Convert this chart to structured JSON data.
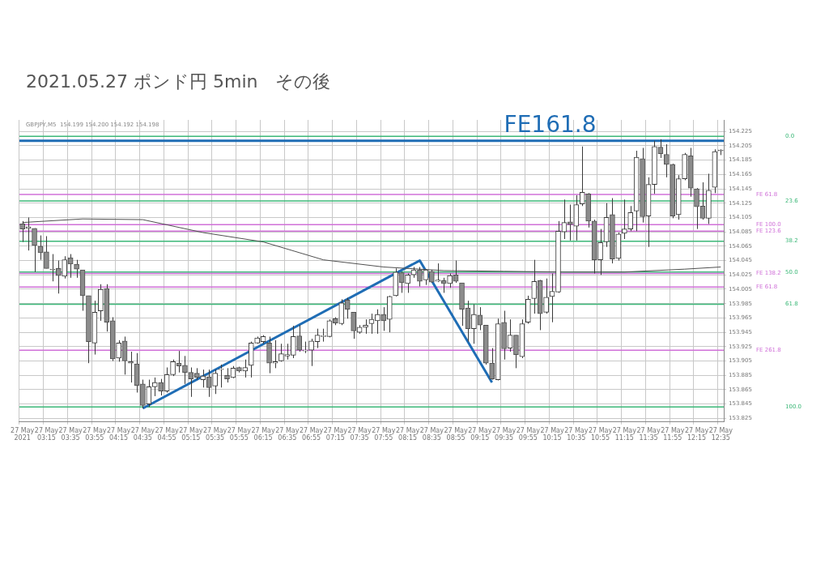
{
  "chart_data": {
    "type": "candlestick",
    "title": "2021.05.27  ポンド円 5min　その後",
    "categories": [
      "27 May 2021",
      null,
      null,
      null,
      "27 May 03:15",
      null,
      null,
      null,
      "27 May 03:35",
      null,
      null,
      null,
      "27 May 03:55",
      null,
      null,
      null,
      "27 May 04:15",
      null,
      null,
      null,
      "27 May 04:35",
      null,
      null,
      null,
      "27 May 04:55",
      null,
      null,
      null,
      "27 May 05:15",
      null,
      null,
      null,
      "27 May 05:35",
      null,
      null,
      null,
      "27 May 05:55",
      null,
      null,
      null,
      "27 May 06:15",
      null,
      null,
      null,
      "27 May 06:35",
      null,
      null,
      null,
      "27 May 06:55",
      null,
      null,
      null,
      "27 May 07:15",
      null,
      null,
      null,
      "27 May 07:35",
      null,
      null,
      null,
      "27 May 07:55",
      null,
      null,
      null,
      "27 May 08:15",
      null,
      null,
      null,
      "27 May 08:35",
      null,
      null,
      null,
      "27 May 08:55",
      null,
      null,
      null,
      "27 May 09:15",
      null,
      null,
      null,
      "27 May 09:35",
      null,
      null,
      null,
      "27 May 09:55",
      null,
      null,
      null,
      "27 May 10:15",
      null,
      null,
      null,
      "27 May 10:35",
      null,
      null,
      null,
      "27 May 10:55",
      null,
      null,
      null,
      "27 May 11:15",
      null,
      null,
      null,
      "27 May 11:35",
      null,
      null,
      null,
      "27 May 11:55",
      null,
      null,
      null,
      "27 May 12:15",
      null,
      null,
      null,
      "27 May 12:35"
    ],
    "ohlc": [
      [
        154.096,
        154.1,
        154.071,
        154.089
      ],
      [
        154.09,
        154.105,
        154.059,
        154.092
      ],
      [
        154.09,
        154.09,
        154.029,
        154.066
      ],
      [
        154.065,
        154.08,
        154.046,
        154.056
      ],
      [
        154.057,
        154.079,
        154.034,
        154.034
      ],
      [
        154.033,
        154.054,
        154.016,
        154.032
      ],
      [
        154.034,
        154.045,
        153.999,
        154.024
      ],
      [
        154.023,
        154.051,
        154.02,
        154.046
      ],
      [
        154.049,
        154.054,
        154.021,
        154.04
      ],
      [
        154.04,
        154.046,
        154.021,
        154.033
      ],
      [
        154.032,
        154.032,
        153.975,
        153.996
      ],
      [
        153.996,
        153.996,
        153.902,
        153.932
      ],
      [
        153.93,
        153.989,
        153.914,
        153.973
      ],
      [
        153.975,
        154.012,
        153.961,
        154.005
      ],
      [
        154.006,
        154.012,
        153.946,
        153.959
      ],
      [
        153.961,
        153.966,
        153.905,
        153.908
      ],
      [
        153.909,
        153.934,
        153.904,
        153.93
      ],
      [
        153.933,
        153.939,
        153.886,
        153.905
      ],
      [
        153.904,
        153.918,
        153.875,
        153.902
      ],
      [
        153.901,
        153.916,
        153.861,
        153.871
      ],
      [
        153.873,
        153.879,
        153.839,
        153.843
      ],
      [
        153.845,
        153.879,
        153.841,
        153.869
      ],
      [
        153.869,
        153.882,
        153.856,
        153.875
      ],
      [
        153.875,
        153.88,
        153.857,
        153.863
      ],
      [
        153.863,
        153.896,
        153.861,
        153.886
      ],
      [
        153.886,
        153.907,
        153.884,
        153.904
      ],
      [
        153.902,
        153.919,
        153.889,
        153.898
      ],
      [
        153.899,
        153.912,
        153.873,
        153.889
      ],
      [
        153.889,
        153.896,
        153.855,
        153.88
      ],
      [
        153.888,
        153.895,
        153.879,
        153.882
      ],
      [
        153.879,
        153.893,
        153.868,
        153.884
      ],
      [
        153.883,
        153.893,
        153.855,
        153.868
      ],
      [
        153.87,
        153.893,
        153.859,
        153.888
      ],
      [
        153.893,
        153.9,
        153.868,
        153.893
      ],
      [
        153.885,
        153.895,
        153.875,
        153.88
      ],
      [
        153.882,
        153.898,
        153.881,
        153.895
      ],
      [
        153.896,
        153.897,
        153.889,
        153.891
      ],
      [
        153.891,
        153.907,
        153.882,
        153.896
      ],
      [
        153.899,
        153.932,
        153.882,
        153.93
      ],
      [
        153.93,
        153.939,
        153.929,
        153.937
      ],
      [
        153.932,
        153.941,
        153.929,
        153.939
      ],
      [
        153.93,
        153.939,
        153.888,
        153.902
      ],
      [
        153.902,
        153.934,
        153.895,
        153.904
      ],
      [
        153.905,
        153.929,
        153.904,
        153.915
      ],
      [
        153.912,
        153.929,
        153.907,
        153.914
      ],
      [
        153.913,
        153.954,
        153.909,
        153.939
      ],
      [
        153.94,
        153.955,
        153.918,
        153.92
      ],
      [
        153.919,
        153.932,
        153.916,
        153.92
      ],
      [
        153.92,
        153.936,
        153.898,
        153.933
      ],
      [
        153.932,
        153.95,
        153.923,
        153.941
      ],
      [
        153.939,
        153.95,
        153.932,
        153.94
      ],
      [
        153.939,
        153.963,
        153.938,
        153.961
      ],
      [
        153.964,
        153.966,
        153.955,
        153.958
      ],
      [
        153.957,
        153.991,
        153.955,
        153.986
      ],
      [
        153.99,
        153.993,
        153.964,
        153.977
      ],
      [
        153.973,
        153.973,
        153.936,
        153.947
      ],
      [
        153.945,
        153.955,
        153.943,
        153.952
      ],
      [
        153.952,
        153.963,
        153.943,
        153.955
      ],
      [
        153.957,
        153.971,
        153.943,
        153.963
      ],
      [
        153.961,
        153.977,
        153.943,
        153.97
      ],
      [
        153.97,
        153.98,
        153.947,
        153.961
      ],
      [
        153.963,
        153.996,
        153.945,
        153.995
      ],
      [
        153.996,
        154.034,
        153.995,
        154.029
      ],
      [
        154.028,
        154.029,
        154.0,
        154.014
      ],
      [
        154.013,
        154.027,
        154.0,
        154.025
      ],
      [
        154.025,
        154.036,
        154.021,
        154.032
      ],
      [
        154.032,
        154.036,
        154.009,
        154.016
      ],
      [
        154.018,
        154.033,
        154.011,
        154.032
      ],
      [
        154.03,
        154.032,
        154.014,
        154.015
      ],
      [
        154.016,
        154.041,
        154.015,
        154.018
      ],
      [
        154.017,
        154.021,
        154.0,
        154.013
      ],
      [
        154.013,
        154.027,
        154.007,
        154.024
      ],
      [
        154.025,
        154.045,
        154.014,
        154.016
      ],
      [
        154.014,
        154.014,
        153.954,
        153.977
      ],
      [
        153.979,
        153.989,
        153.932,
        153.95
      ],
      [
        153.95,
        153.984,
        153.929,
        153.97
      ],
      [
        153.969,
        153.98,
        153.948,
        153.955
      ],
      [
        153.955,
        153.955,
        153.9,
        153.902
      ],
      [
        153.902,
        153.923,
        153.879,
        153.88
      ],
      [
        153.879,
        153.964,
        153.878,
        153.957
      ],
      [
        153.959,
        153.975,
        153.907,
        153.922
      ],
      [
        153.923,
        153.963,
        153.918,
        153.941
      ],
      [
        153.941,
        153.941,
        153.895,
        153.914
      ],
      [
        153.911,
        153.963,
        153.909,
        153.957
      ],
      [
        153.959,
        153.996,
        153.957,
        153.991
      ],
      [
        153.992,
        154.046,
        153.971,
        154.016
      ],
      [
        154.017,
        154.018,
        153.948,
        153.971
      ],
      [
        153.973,
        154.02,
        153.971,
        153.994
      ],
      [
        153.995,
        154.027,
        153.959,
        154.002
      ],
      [
        154.001,
        154.1,
        154.0,
        154.086
      ],
      [
        154.085,
        154.13,
        154.075,
        154.098
      ],
      [
        154.099,
        154.123,
        154.073,
        154.095
      ],
      [
        154.093,
        154.136,
        154.073,
        154.123
      ],
      [
        154.124,
        154.204,
        154.121,
        154.14
      ],
      [
        154.138,
        154.139,
        154.091,
        154.1
      ],
      [
        154.1,
        154.102,
        154.027,
        154.046
      ],
      [
        154.046,
        154.089,
        154.025,
        154.07
      ],
      [
        154.071,
        154.125,
        154.064,
        154.105
      ],
      [
        154.109,
        154.132,
        154.041,
        154.047
      ],
      [
        154.048,
        154.084,
        154.045,
        154.082
      ],
      [
        154.083,
        154.13,
        154.075,
        154.089
      ],
      [
        154.089,
        154.121,
        154.086,
        154.112
      ],
      [
        154.114,
        154.198,
        154.086,
        154.189
      ],
      [
        154.187,
        154.202,
        154.098,
        154.106
      ],
      [
        154.107,
        154.161,
        154.064,
        154.151
      ],
      [
        154.151,
        154.212,
        154.138,
        154.204
      ],
      [
        154.203,
        154.214,
        154.188,
        154.194
      ],
      [
        154.193,
        154.207,
        154.161,
        154.179
      ],
      [
        154.179,
        154.18,
        154.104,
        154.107
      ],
      [
        154.109,
        154.164,
        154.102,
        154.159
      ],
      [
        154.159,
        154.195,
        154.157,
        154.193
      ],
      [
        154.191,
        154.202,
        154.134,
        154.146
      ],
      [
        154.145,
        154.146,
        154.089,
        154.12
      ],
      [
        154.121,
        154.154,
        154.102,
        154.104
      ],
      [
        154.104,
        154.166,
        154.096,
        154.143
      ],
      [
        154.147,
        154.2,
        154.139,
        154.197
      ],
      [
        154.199,
        154.2,
        154.192,
        154.198
      ]
    ],
    "series": [
      {
        "type": "line",
        "color": "#505050",
        "values": [
          154.098,
          null,
          null,
          null,
          null,
          null,
          null,
          null,
          null,
          null,
          154.103,
          null,
          null,
          null,
          null,
          null,
          null,
          null,
          null,
          null,
          154.102,
          null,
          null,
          null,
          null,
          null,
          null,
          null,
          null,
          null,
          154.084,
          null,
          null,
          null,
          null,
          null,
          null,
          null,
          null,
          null,
          154.071,
          null,
          null,
          null,
          null,
          null,
          null,
          null,
          null,
          null,
          154.046,
          null,
          null,
          null,
          null,
          null,
          null,
          null,
          null,
          null,
          154.036,
          null,
          null,
          null,
          null,
          null,
          null,
          null,
          null,
          null,
          154.031,
          null,
          null,
          null,
          null,
          null,
          null,
          null,
          null,
          null,
          154.03,
          null,
          null,
          null,
          null,
          null,
          null,
          null,
          null,
          null,
          154.029,
          null,
          null,
          null,
          null,
          null,
          null,
          null,
          null,
          null,
          154.029,
          null,
          null,
          null,
          null,
          null,
          null,
          null,
          null,
          null,
          154.033,
          null,
          null,
          null,
          null,
          null,
          154.036
        ]
      },
      {
        "type": "line",
        "color": "#1f6db5",
        "values": [
          null,
          null,
          null,
          null,
          null,
          null,
          null,
          null,
          null,
          null,
          null,
          null,
          null,
          null,
          null,
          null,
          null,
          null,
          null,
          null,
          153.839,
          null,
          null,
          null,
          null,
          null,
          null,
          null,
          null,
          null,
          null,
          null,
          null,
          null,
          null,
          null,
          null,
          null,
          null,
          null,
          null,
          null,
          null,
          null,
          null,
          null,
          null,
          null,
          null,
          null,
          null,
          null,
          null,
          null,
          null,
          null,
          null,
          null,
          null,
          null,
          null,
          null,
          null,
          null,
          null,
          null,
          154.045,
          null,
          null,
          null,
          null,
          null,
          null,
          null,
          null,
          null,
          null,
          null,
          153.875,
          null,
          null,
          null,
          null,
          null,
          null,
          null,
          null,
          null,
          null,
          null,
          null,
          null,
          null,
          null,
          null,
          null,
          null,
          null,
          null,
          null,
          null,
          null,
          null,
          null,
          null,
          null,
          null,
          null,
          null,
          null,
          null,
          null,
          null,
          null,
          null,
          null,
          null
        ]
      }
    ],
    "ylim": [
      153.82,
      154.241
    ],
    "yticks": [
      153.825,
      153.845,
      153.865,
      153.885,
      153.905,
      153.925,
      153.945,
      153.965,
      153.985,
      154.005,
      154.025,
      154.045,
      154.065,
      154.085,
      154.105,
      154.125,
      154.145,
      154.165,
      154.185,
      154.205,
      154.225
    ],
    "grid": true,
    "legend": false,
    "marker": "none",
    "line_style": "solid",
    "ref_lines": [
      {
        "axis": "y",
        "value": 154.212,
        "color": "#1f6db5"
      },
      {
        "axis": "y",
        "value": 154.218,
        "color": "#3cb878"
      },
      {
        "axis": "y",
        "value": 154.128,
        "color": "#3cb878"
      },
      {
        "axis": "y",
        "value": 154.072,
        "color": "#3cb878"
      },
      {
        "axis": "y",
        "value": 154.029,
        "color": "#3cb878"
      },
      {
        "axis": "y",
        "value": 153.984,
        "color": "#3cb878"
      },
      {
        "axis": "y",
        "value": 153.841,
        "color": "#3cb878"
      },
      {
        "axis": "y",
        "value": 154.137,
        "color": "#d070d8"
      },
      {
        "axis": "y",
        "value": 154.095,
        "color": "#d070d8"
      },
      {
        "axis": "y",
        "value": 154.086,
        "color": "#d070d8"
      },
      {
        "axis": "y",
        "value": 154.027,
        "color": "#d070d8"
      },
      {
        "axis": "y",
        "value": 154.008,
        "color": "#d070d8"
      },
      {
        "axis": "y",
        "value": 153.92,
        "color": "#d070d8"
      }
    ],
    "annotations": [
      {
        "text": "FE161.8",
        "x": "27 May 09:35",
        "y": 154.212
      },
      "0.0",
      "23.6",
      "38.2",
      "50.0",
      "61.8",
      "100.0",
      "FE 61.8",
      "FE 100.0",
      "FE 123.6",
      "FE 138.2",
      "FE 61.8",
      "FE 261.8",
      "GBPJPY,M5  154.199 154.200 154.192 154.198"
    ]
  }
}
